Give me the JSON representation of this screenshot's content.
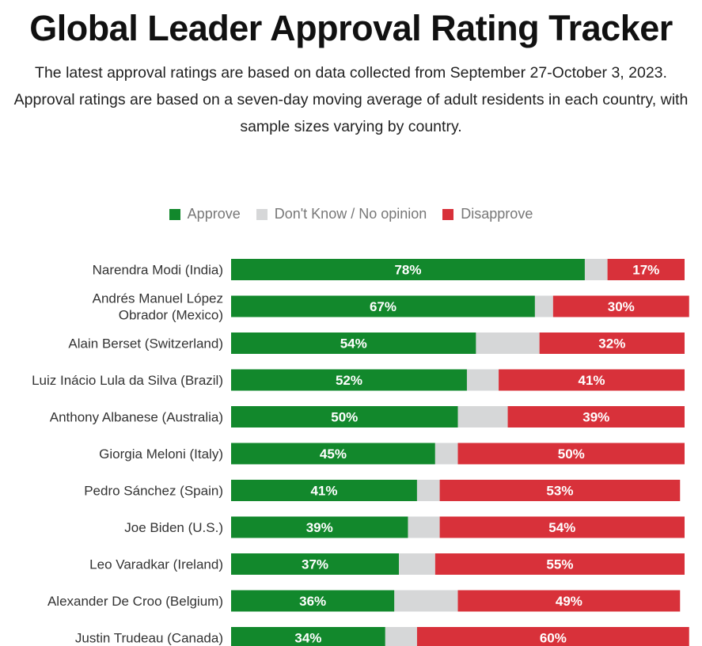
{
  "title": "Global Leader Approval Rating Tracker",
  "subtitle": "The latest approval ratings are based on data collected from September 27-October 3, 2023. Approval ratings are based on a seven-day moving average of adult residents in each country, with sample sizes varying by country.",
  "colors": {
    "approve": "#12882c",
    "dont_know": "#d6d7d8",
    "disapprove": "#d8313a"
  },
  "legend": [
    {
      "label": "Approve",
      "key": "approve"
    },
    {
      "label": "Don't Know / No opinion",
      "key": "dont_know"
    },
    {
      "label": "Disapprove",
      "key": "disapprove"
    }
  ],
  "chart_data": {
    "type": "bar",
    "orientation": "horizontal",
    "stacked": true,
    "value_suffix": "%",
    "categories": [
      [
        "Narendra Modi (India)"
      ],
      [
        "Andrés Manuel López",
        "Obrador (Mexico)"
      ],
      [
        "Alain Berset (Switzerland)"
      ],
      [
        "Luiz Inácio Lula da Silva (Brazil)"
      ],
      [
        "Anthony Albanese (Australia)"
      ],
      [
        "Giorgia Meloni (Italy)"
      ],
      [
        "Pedro Sánchez (Spain)"
      ],
      [
        "Joe Biden (U.S.)"
      ],
      [
        "Leo Varadkar (Ireland)"
      ],
      [
        "Alexander De Croo (Belgium)"
      ],
      [
        "Justin Trudeau (Canada)"
      ]
    ],
    "series": [
      {
        "name": "Approve",
        "key": "approve",
        "values": [
          78,
          67,
          54,
          52,
          50,
          45,
          41,
          39,
          37,
          36,
          34
        ]
      },
      {
        "name": "Don't Know / No opinion",
        "key": "dont_know",
        "values": [
          5,
          4,
          14,
          7,
          11,
          5,
          5,
          7,
          8,
          14,
          7
        ]
      },
      {
        "name": "Disapprove",
        "key": "disapprove",
        "values": [
          17,
          30,
          32,
          41,
          39,
          50,
          53,
          54,
          55,
          49,
          60
        ]
      }
    ],
    "xlim": [
      0,
      100
    ],
    "legend_position": "top-center",
    "grid": false
  }
}
